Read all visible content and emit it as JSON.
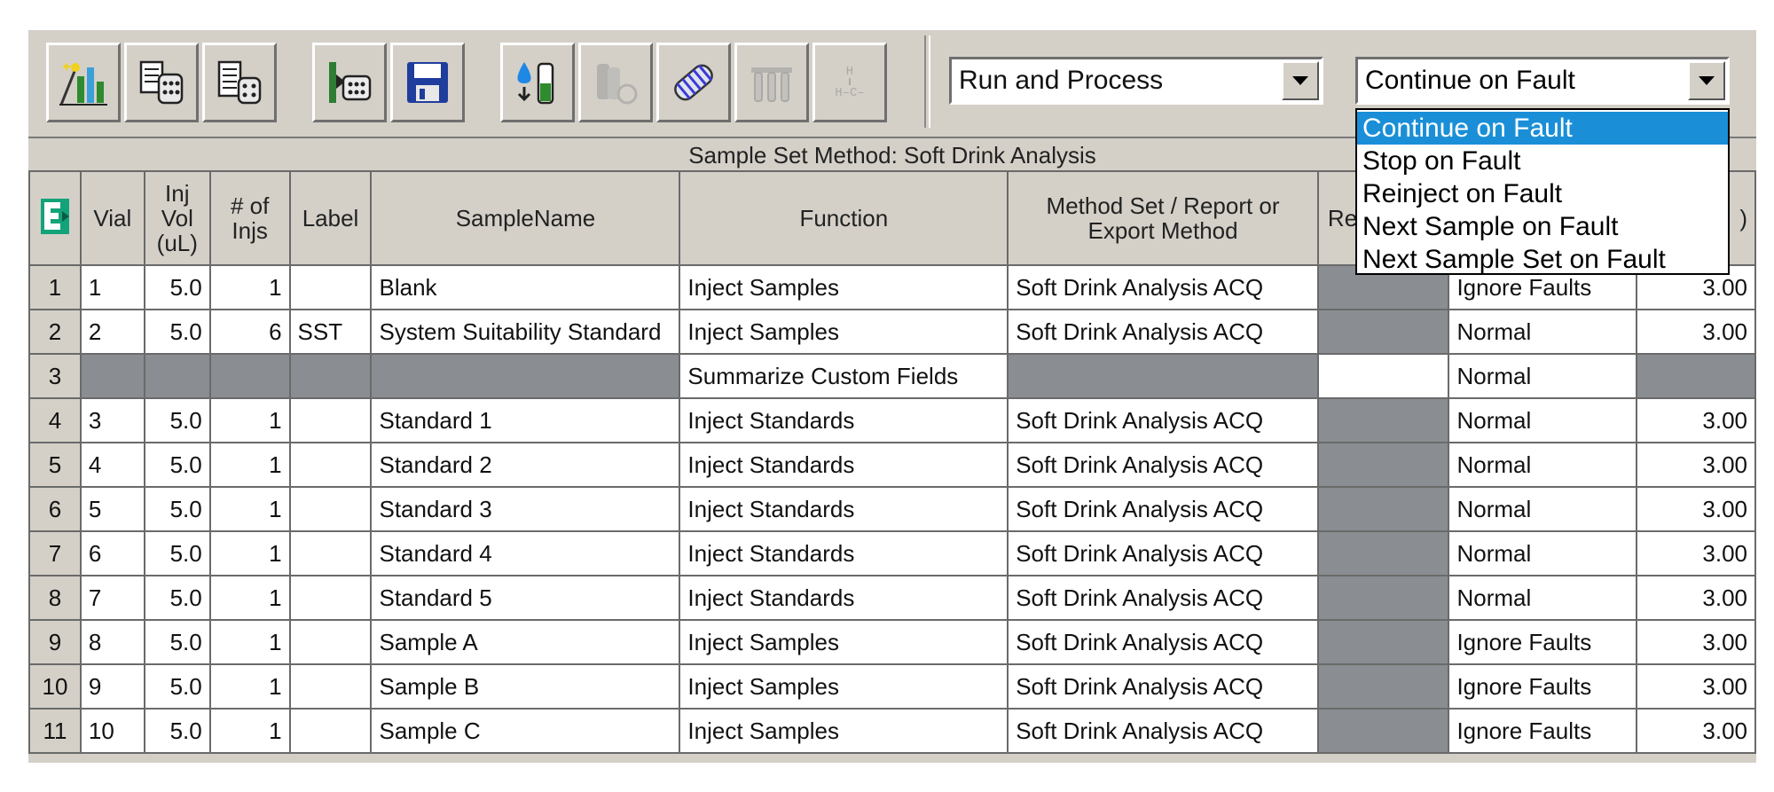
{
  "toolbar": {
    "buttons": [
      {
        "name": "wizard",
        "icon": "wizard-chart-icon",
        "enabled": true
      },
      {
        "name": "load-samples",
        "icon": "load-samples-icon",
        "enabled": true
      },
      {
        "name": "load-samples-alt",
        "icon": "load-samples-alt-icon",
        "enabled": true
      },
      {
        "name": "import-vials",
        "icon": "import-vials-icon",
        "enabled": true
      },
      {
        "name": "save",
        "icon": "save-disk-icon",
        "enabled": true
      },
      {
        "name": "inject",
        "icon": "inject-vial-icon",
        "enabled": true
      },
      {
        "name": "vial-stack",
        "icon": "vial-stack-icon",
        "enabled": false
      },
      {
        "name": "column",
        "icon": "column-icon",
        "enabled": true
      },
      {
        "name": "tube-rack",
        "icon": "tube-rack-icon",
        "enabled": false
      },
      {
        "name": "structure",
        "icon": "structure-formula-icon",
        "enabled": false
      }
    ],
    "structure_glyph_top": "H",
    "structure_glyph_bottom": "H–C–",
    "mode_combo_value": "Run and Process",
    "fault_combo_value": "Continue on Fault"
  },
  "grid": {
    "title": "Sample Set Method: Soft Drink Analysis",
    "headers": {
      "vial": "Vial",
      "inj_vol": "Inj Vol (uL)",
      "injs": "# of Injs",
      "label": "Label",
      "sample_name": "SampleName",
      "function": "Function",
      "method": "Method Set / Report or Export Method",
      "processing_partial": "Re",
      "run_time_partial": ")"
    },
    "rows": [
      {
        "n": "1",
        "vial": "1",
        "vol": "5.0",
        "injs": "1",
        "label": "",
        "name": "Blank",
        "func": "Inject Samples",
        "method": "Soft Drink Analysis ACQ",
        "fault": "Ignore Faults",
        "time": "3.00"
      },
      {
        "n": "2",
        "vial": "2",
        "vol": "5.0",
        "injs": "6",
        "label": "SST",
        "name": "System Suitability Standard",
        "func": "Inject Samples",
        "method": "Soft Drink Analysis ACQ",
        "fault": "Normal",
        "time": "3.00"
      },
      {
        "n": "3",
        "vial": "",
        "vol": "",
        "injs": "",
        "label": "",
        "name": "",
        "func": "Summarize Custom Fields",
        "method": "",
        "fault": "Normal",
        "time": "",
        "summary": true
      },
      {
        "n": "4",
        "vial": "3",
        "vol": "5.0",
        "injs": "1",
        "label": "",
        "name": "Standard 1",
        "func": "Inject Standards",
        "method": "Soft Drink Analysis ACQ",
        "fault": "Normal",
        "time": "3.00"
      },
      {
        "n": "5",
        "vial": "4",
        "vol": "5.0",
        "injs": "1",
        "label": "",
        "name": "Standard 2",
        "func": "Inject Standards",
        "method": "Soft Drink Analysis ACQ",
        "fault": "Normal",
        "time": "3.00"
      },
      {
        "n": "6",
        "vial": "5",
        "vol": "5.0",
        "injs": "1",
        "label": "",
        "name": "Standard 3",
        "func": "Inject Standards",
        "method": "Soft Drink Analysis ACQ",
        "fault": "Normal",
        "time": "3.00"
      },
      {
        "n": "7",
        "vial": "6",
        "vol": "5.0",
        "injs": "1",
        "label": "",
        "name": "Standard 4",
        "func": "Inject Standards",
        "method": "Soft Drink Analysis ACQ",
        "fault": "Normal",
        "time": "3.00"
      },
      {
        "n": "8",
        "vial": "7",
        "vol": "5.0",
        "injs": "1",
        "label": "",
        "name": "Standard 5",
        "func": "Inject Standards",
        "method": "Soft Drink Analysis ACQ",
        "fault": "Normal",
        "time": "3.00"
      },
      {
        "n": "9",
        "vial": "8",
        "vol": "5.0",
        "injs": "1",
        "label": "",
        "name": "Sample A",
        "func": "Inject Samples",
        "method": "Soft Drink Analysis ACQ",
        "fault": "Ignore Faults",
        "time": "3.00"
      },
      {
        "n": "10",
        "vial": "9",
        "vol": "5.0",
        "injs": "1",
        "label": "",
        "name": "Sample B",
        "func": "Inject Samples",
        "method": "Soft Drink Analysis ACQ",
        "fault": "Ignore Faults",
        "time": "3.00"
      },
      {
        "n": "11",
        "vial": "10",
        "vol": "5.0",
        "injs": "1",
        "label": "",
        "name": "Sample C",
        "func": "Inject Samples",
        "method": "Soft Drink Analysis ACQ",
        "fault": "Ignore Faults",
        "time": "3.00"
      }
    ]
  },
  "fault_dropdown": {
    "options": [
      "Continue on Fault",
      "Stop on Fault",
      "Reinject on Fault",
      "Next Sample on Fault",
      "Next Sample Set on Fault"
    ],
    "selected_index": 0
  },
  "colors": {
    "chrome": "#d4d0c8",
    "disabled_cell": "#8a8d91",
    "selection": "#1a8fd8"
  }
}
